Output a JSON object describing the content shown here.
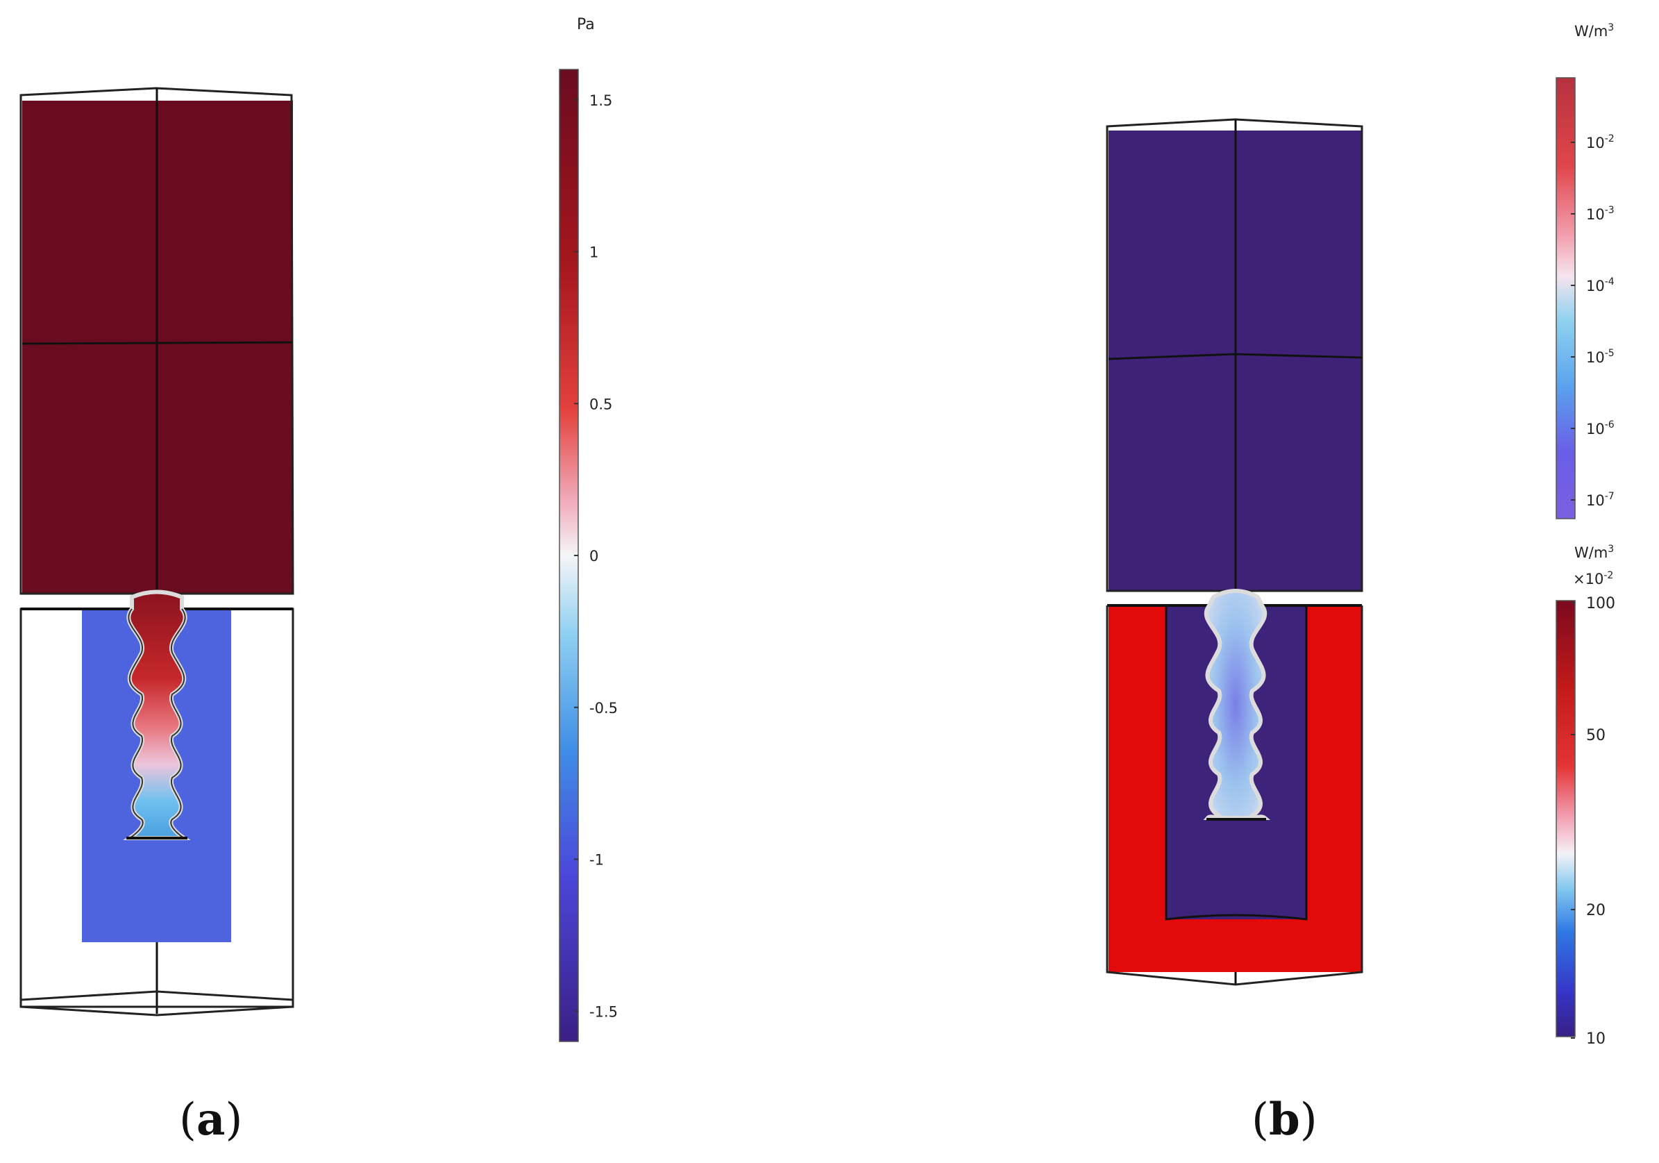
{
  "panel_a": {
    "caption_open": "(",
    "caption_letter": "a",
    "caption_close": ")",
    "colorbar": {
      "unit": "Pa",
      "ticks": [
        "1.5",
        "1",
        "0.5",
        "0",
        "-0.5",
        "-1",
        "-1.5"
      ],
      "range": [
        -1.6,
        1.6
      ]
    },
    "colors": {
      "upper_block": "#6a0c20",
      "inner_sleeve": "#4e63de",
      "bulb_top": "#9c1b21",
      "bulb_mid": "#e6b9d0",
      "bulb_low": "#5cb1e8"
    }
  },
  "panel_b": {
    "caption_open": "(",
    "caption_letter": "b",
    "caption_close": ")",
    "colorbar_top": {
      "unit": "W/m",
      "unit_exp": "3",
      "ticks": [
        {
          "base": "10",
          "exp": "-2"
        },
        {
          "base": "10",
          "exp": "-3"
        },
        {
          "base": "10",
          "exp": "-4"
        },
        {
          "base": "10",
          "exp": "-5"
        },
        {
          "base": "10",
          "exp": "-6"
        },
        {
          "base": "10",
          "exp": "-7"
        }
      ]
    },
    "colorbar_bottom": {
      "unit": "W/m",
      "unit_exp": "3",
      "multiplier": "×10",
      "multiplier_exp": "-2",
      "ticks": [
        "100",
        "50",
        "20",
        "10"
      ]
    },
    "colors": {
      "upper_block": "#3f2277",
      "outer_shell": "#e20a0a",
      "inner_core": "#3d2379",
      "bulb": "#7da2e6"
    }
  }
}
